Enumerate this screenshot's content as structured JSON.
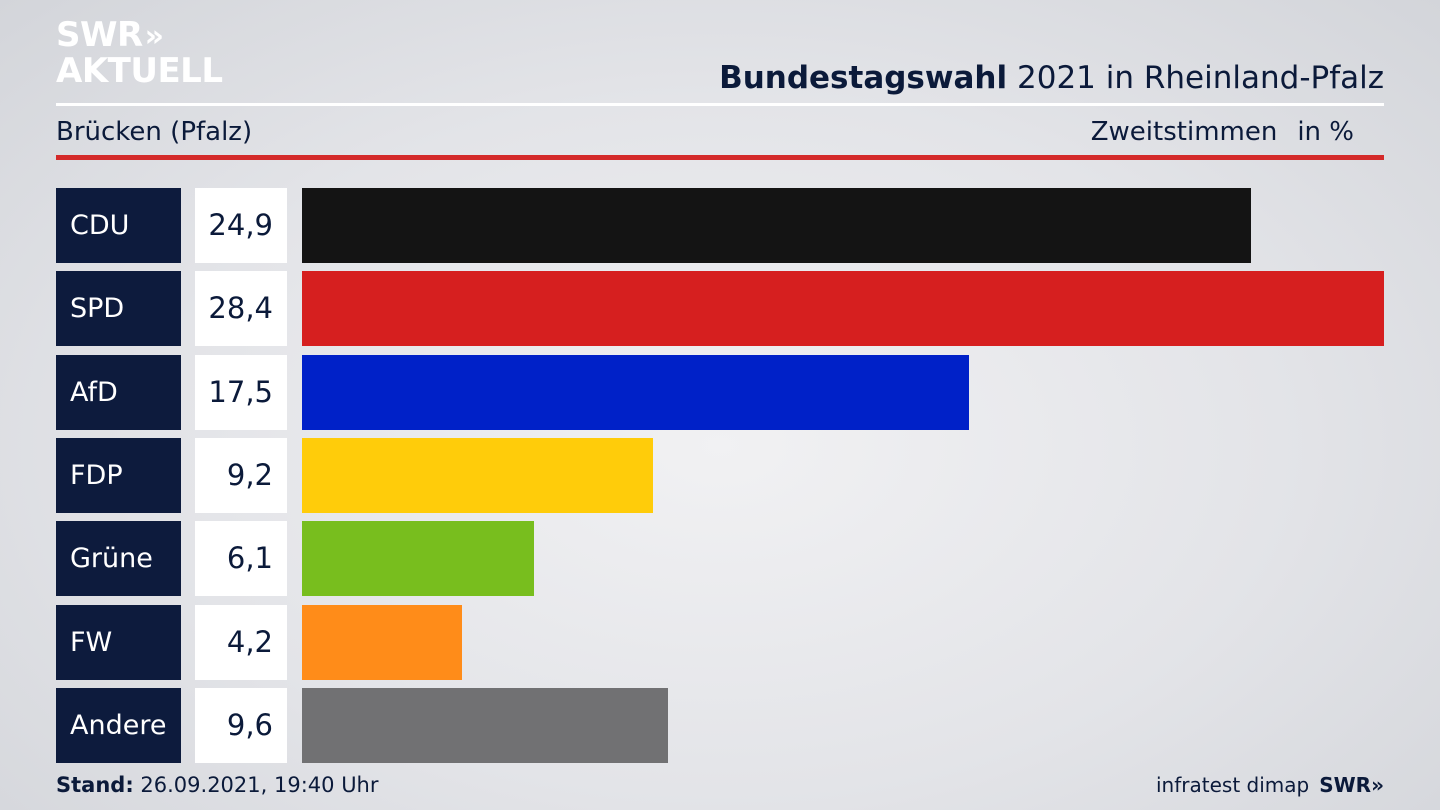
{
  "logo": {
    "line1": "SWR",
    "line2": "AKTUELL",
    "chevrons": "»"
  },
  "header": {
    "title_bold": "Bundestagswahl",
    "title_rest": "2021 in Rheinland-Pfalz",
    "subtitle": "Brücken (Pfalz)",
    "measure": "Zweitstimmen",
    "unit": "in %"
  },
  "chart_data": {
    "type": "bar",
    "orientation": "horizontal",
    "title": "Bundestagswahl 2021 in Rheinland-Pfalz",
    "subtitle": "Brücken (Pfalz)",
    "xlabel": "",
    "ylabel": "",
    "categories": [
      "CDU",
      "SPD",
      "AfD",
      "FDP",
      "Grüne",
      "FW",
      "Andere"
    ],
    "values": [
      24.9,
      28.4,
      17.5,
      9.2,
      6.1,
      4.2,
      9.6
    ],
    "value_labels": [
      "24,9",
      "28,4",
      "17,5",
      "9,2",
      "6,1",
      "4,2",
      "9,6"
    ],
    "colors": [
      "#141414",
      "#d61f1f",
      "#0021c8",
      "#ffcc0a",
      "#78be1e",
      "#ff8c19",
      "#717173"
    ],
    "xlim": [
      0,
      28.4
    ],
    "grid": false,
    "legend": "none"
  },
  "footer": {
    "stand_label": "Stand:",
    "stand_value": "26.09.2021, 19:40 Uhr",
    "source": "infratest dimap",
    "brand": "SWR»"
  }
}
